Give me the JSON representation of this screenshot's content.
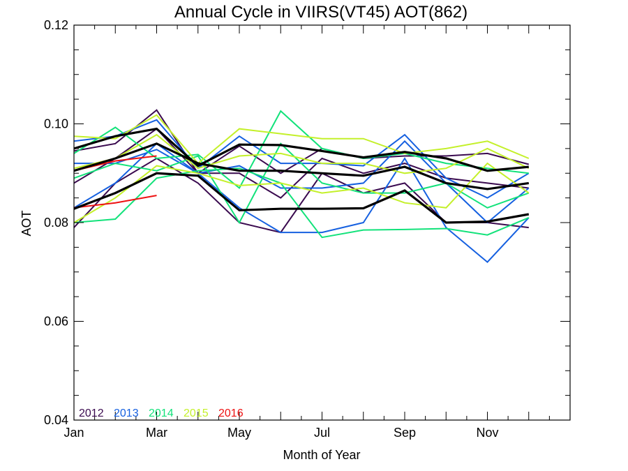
{
  "chart_data": {
    "type": "line",
    "title": "Annual Cycle in VIIRS(VT45) AOT(862)",
    "xlabel": "Month of Year",
    "ylabel": "AOT",
    "xlim": [
      1,
      13
    ],
    "ylim": [
      0.04,
      0.12
    ],
    "x_ticks": [
      {
        "x": 1,
        "label": "Jan"
      },
      {
        "x": 3,
        "label": "Mar"
      },
      {
        "x": 5,
        "label": "May"
      },
      {
        "x": 7,
        "label": "Jul"
      },
      {
        "x": 9,
        "label": "Sep"
      },
      {
        "x": 11,
        "label": "Nov"
      }
    ],
    "y_ticks": [
      0.04,
      0.06,
      0.08,
      0.1,
      0.12
    ],
    "y_tick_labels": [
      "0.04",
      "0.06",
      "0.08",
      "0.10",
      "0.12"
    ],
    "legend": [
      {
        "label": "2012",
        "color": "#3a0a4f"
      },
      {
        "label": "2013",
        "color": "#1560e0"
      },
      {
        "label": "2014",
        "color": "#12e27a"
      },
      {
        "label": "2015",
        "color": "#c4f02a"
      },
      {
        "label": "2016",
        "color": "#ee1111"
      }
    ],
    "series": [
      {
        "color": "#3a0a4f",
        "width": 2,
        "x": [
          1,
          2,
          3,
          4,
          5,
          6,
          7,
          8,
          9,
          10,
          11,
          12
        ],
        "y": [
          0.0945,
          0.096,
          0.1028,
          0.09,
          0.0955,
          0.09,
          0.095,
          0.093,
          0.0935,
          0.0935,
          0.094,
          0.0918
        ]
      },
      {
        "color": "#3a0a4f",
        "width": 2,
        "x": [
          1,
          2,
          3,
          4,
          5,
          6,
          7,
          8,
          9,
          10,
          11,
          12
        ],
        "y": [
          0.088,
          0.093,
          0.099,
          0.09,
          0.09,
          0.085,
          0.093,
          0.09,
          0.092,
          0.089,
          0.088,
          0.087
        ]
      },
      {
        "color": "#3a0a4f",
        "width": 2,
        "x": [
          1,
          2,
          3,
          4,
          5,
          6,
          7,
          8,
          9,
          10,
          11,
          12
        ],
        "y": [
          0.079,
          0.088,
          0.093,
          0.088,
          0.08,
          0.078,
          0.09,
          0.086,
          0.088,
          0.08,
          0.08,
          0.079
        ]
      },
      {
        "color": "#1560e0",
        "width": 2,
        "x": [
          1,
          2,
          3,
          4,
          5,
          6,
          7,
          8,
          9,
          10,
          11,
          12
        ],
        "y": [
          0.0965,
          0.0975,
          0.1008,
          0.091,
          0.0975,
          0.092,
          0.092,
          0.0915,
          0.0978,
          0.089,
          0.085,
          0.09
        ]
      },
      {
        "color": "#1560e0",
        "width": 2,
        "x": [
          1,
          2,
          3,
          4,
          5,
          6,
          7,
          8,
          9,
          10,
          11,
          12
        ],
        "y": [
          0.092,
          0.092,
          0.0948,
          0.09,
          0.0915,
          0.087,
          0.087,
          0.088,
          0.0965,
          0.088,
          0.08,
          0.087
        ]
      },
      {
        "color": "#1560e0",
        "width": 2,
        "x": [
          1,
          2,
          3,
          4,
          5,
          6,
          7,
          8,
          9,
          10,
          11,
          12
        ],
        "y": [
          0.083,
          0.088,
          0.096,
          0.09,
          0.083,
          0.078,
          0.078,
          0.08,
          0.093,
          0.079,
          0.072,
          0.081
        ]
      },
      {
        "color": "#12e27a",
        "width": 2,
        "x": [
          1,
          2,
          3,
          4,
          5,
          6,
          7,
          8,
          9,
          10,
          11,
          12
        ],
        "y": [
          0.094,
          0.0993,
          0.093,
          0.0938,
          0.087,
          0.1026,
          0.095,
          0.093,
          0.094,
          0.092,
          0.091,
          0.09
        ]
      },
      {
        "color": "#12e27a",
        "width": 2,
        "x": [
          1,
          2,
          3,
          4,
          5,
          6,
          7,
          8,
          9,
          10,
          11,
          12
        ],
        "y": [
          0.089,
          0.092,
          0.0905,
          0.0935,
          0.08,
          0.096,
          0.088,
          0.086,
          0.086,
          0.088,
          0.083,
          0.086
        ]
      },
      {
        "color": "#12e27a",
        "width": 2,
        "x": [
          1,
          2,
          3,
          4,
          5,
          6,
          7,
          8,
          9,
          10,
          11,
          12
        ],
        "y": [
          0.08,
          0.0807,
          0.089,
          0.0905,
          0.091,
          0.088,
          0.077,
          0.0785,
          0.0786,
          0.0788,
          0.0775,
          0.081
        ]
      },
      {
        "color": "#c4f02a",
        "width": 2,
        "x": [
          1,
          2,
          3,
          4,
          5,
          6,
          7,
          8,
          9,
          10,
          11,
          12
        ],
        "y": [
          0.0975,
          0.097,
          0.1018,
          0.092,
          0.099,
          0.098,
          0.097,
          0.097,
          0.094,
          0.095,
          0.0965,
          0.093
        ]
      },
      {
        "color": "#c4f02a",
        "width": 2,
        "x": [
          1,
          2,
          3,
          4,
          5,
          6,
          7,
          8,
          9,
          10,
          11,
          12
        ],
        "y": [
          0.091,
          0.093,
          0.0978,
          0.091,
          0.0935,
          0.094,
          0.092,
          0.092,
          0.09,
          0.091,
          0.095,
          0.091
        ]
      },
      {
        "color": "#c4f02a",
        "width": 2,
        "x": [
          1,
          2,
          3,
          4,
          5,
          6,
          7,
          8,
          9,
          10,
          11,
          12
        ],
        "y": [
          0.08,
          0.085,
          0.0915,
          0.09,
          0.0875,
          0.088,
          0.086,
          0.087,
          0.084,
          0.083,
          0.092,
          0.086
        ]
      },
      {
        "color": "#ee1111",
        "width": 2,
        "x": [
          1,
          2,
          3
        ],
        "y": [
          0.0905,
          0.0925,
          0.0935
        ]
      },
      {
        "color": "#ee1111",
        "width": 2,
        "x": [
          1,
          2,
          3
        ],
        "y": [
          0.083,
          0.084,
          0.0855
        ]
      },
      {
        "color": "#000000",
        "width": 3.2,
        "x": [
          1,
          2,
          3,
          4,
          5,
          6,
          7,
          8,
          9,
          10,
          11,
          12
        ],
        "y": [
          0.095,
          0.0975,
          0.099,
          0.0915,
          0.0958,
          0.0957,
          0.0945,
          0.0932,
          0.0943,
          0.093,
          0.0905,
          0.0913
        ]
      },
      {
        "color": "#000000",
        "width": 3.2,
        "x": [
          1,
          2,
          3,
          4,
          5,
          6,
          7,
          8,
          9,
          10,
          11,
          12
        ],
        "y": [
          0.0905,
          0.093,
          0.096,
          0.092,
          0.0905,
          0.0905,
          0.09,
          0.0895,
          0.0913,
          0.088,
          0.0868,
          0.088
        ]
      },
      {
        "color": "#000000",
        "width": 3.2,
        "x": [
          1,
          2,
          3,
          4,
          5,
          6,
          7,
          8,
          9,
          10,
          11,
          12
        ],
        "y": [
          0.0828,
          0.086,
          0.09,
          0.0895,
          0.0825,
          0.0828,
          0.0828,
          0.0829,
          0.0865,
          0.08,
          0.0802,
          0.0817
        ]
      }
    ]
  }
}
